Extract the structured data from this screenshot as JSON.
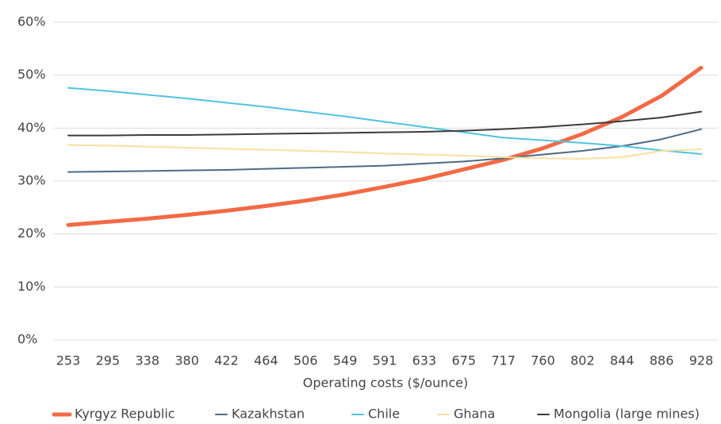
{
  "chart_data": {
    "type": "line",
    "x_label": "Operating costs ($/ounce)",
    "categories": [
      "253",
      "295",
      "338",
      "380",
      "422",
      "464",
      "506",
      "549",
      "591",
      "633",
      "675",
      "717",
      "760",
      "802",
      "844",
      "886",
      "928"
    ],
    "series": [
      {
        "name": "Kyrgyz Republic",
        "color": "#f26a45",
        "values": [
          21.7,
          22.3,
          22.9,
          23.6,
          24.4,
          25.3,
          26.3,
          27.5,
          28.9,
          30.4,
          32.2,
          34.0,
          36.2,
          38.9,
          42.1,
          46.1,
          51.4
        ]
      },
      {
        "name": "Kazakhstan",
        "color": "#4d6a85",
        "values": [
          31.7,
          31.8,
          31.9,
          32.0,
          32.1,
          32.3,
          32.5,
          32.7,
          32.9,
          33.3,
          33.7,
          34.3,
          35.0,
          35.7,
          36.6,
          37.9,
          39.8
        ]
      },
      {
        "name": "Chile",
        "color": "#4fc3e0",
        "values": [
          47.6,
          47.0,
          46.3,
          45.6,
          44.8,
          44.0,
          43.1,
          42.2,
          41.2,
          40.2,
          39.2,
          38.2,
          37.7,
          37.2,
          36.6,
          35.8,
          35.1
        ]
      },
      {
        "name": "Ghana",
        "color": "#f8e0a0",
        "values": [
          36.8,
          36.7,
          36.5,
          36.3,
          36.1,
          35.9,
          35.7,
          35.5,
          35.2,
          35.0,
          34.8,
          34.5,
          34.3,
          34.2,
          34.5,
          35.7,
          36.0
        ]
      },
      {
        "name": "Mongolia (large mines)",
        "color": "#3c3c3c",
        "values": [
          38.6,
          38.6,
          38.7,
          38.7,
          38.8,
          38.9,
          39.0,
          39.1,
          39.2,
          39.3,
          39.5,
          39.8,
          40.2,
          40.7,
          41.3,
          42.0,
          43.1
        ]
      }
    ],
    "ylim": [
      0,
      60
    ],
    "yticks": [
      {
        "value": 0,
        "label": "0%"
      },
      {
        "value": 10,
        "label": "10%"
      },
      {
        "value": 20,
        "label": "20%"
      },
      {
        "value": 30,
        "label": "30%"
      },
      {
        "value": 40,
        "label": "40%"
      },
      {
        "value": 50,
        "label": "50%"
      },
      {
        "value": 60,
        "label": "60%"
      }
    ],
    "grid": true,
    "legend": "bottom"
  }
}
